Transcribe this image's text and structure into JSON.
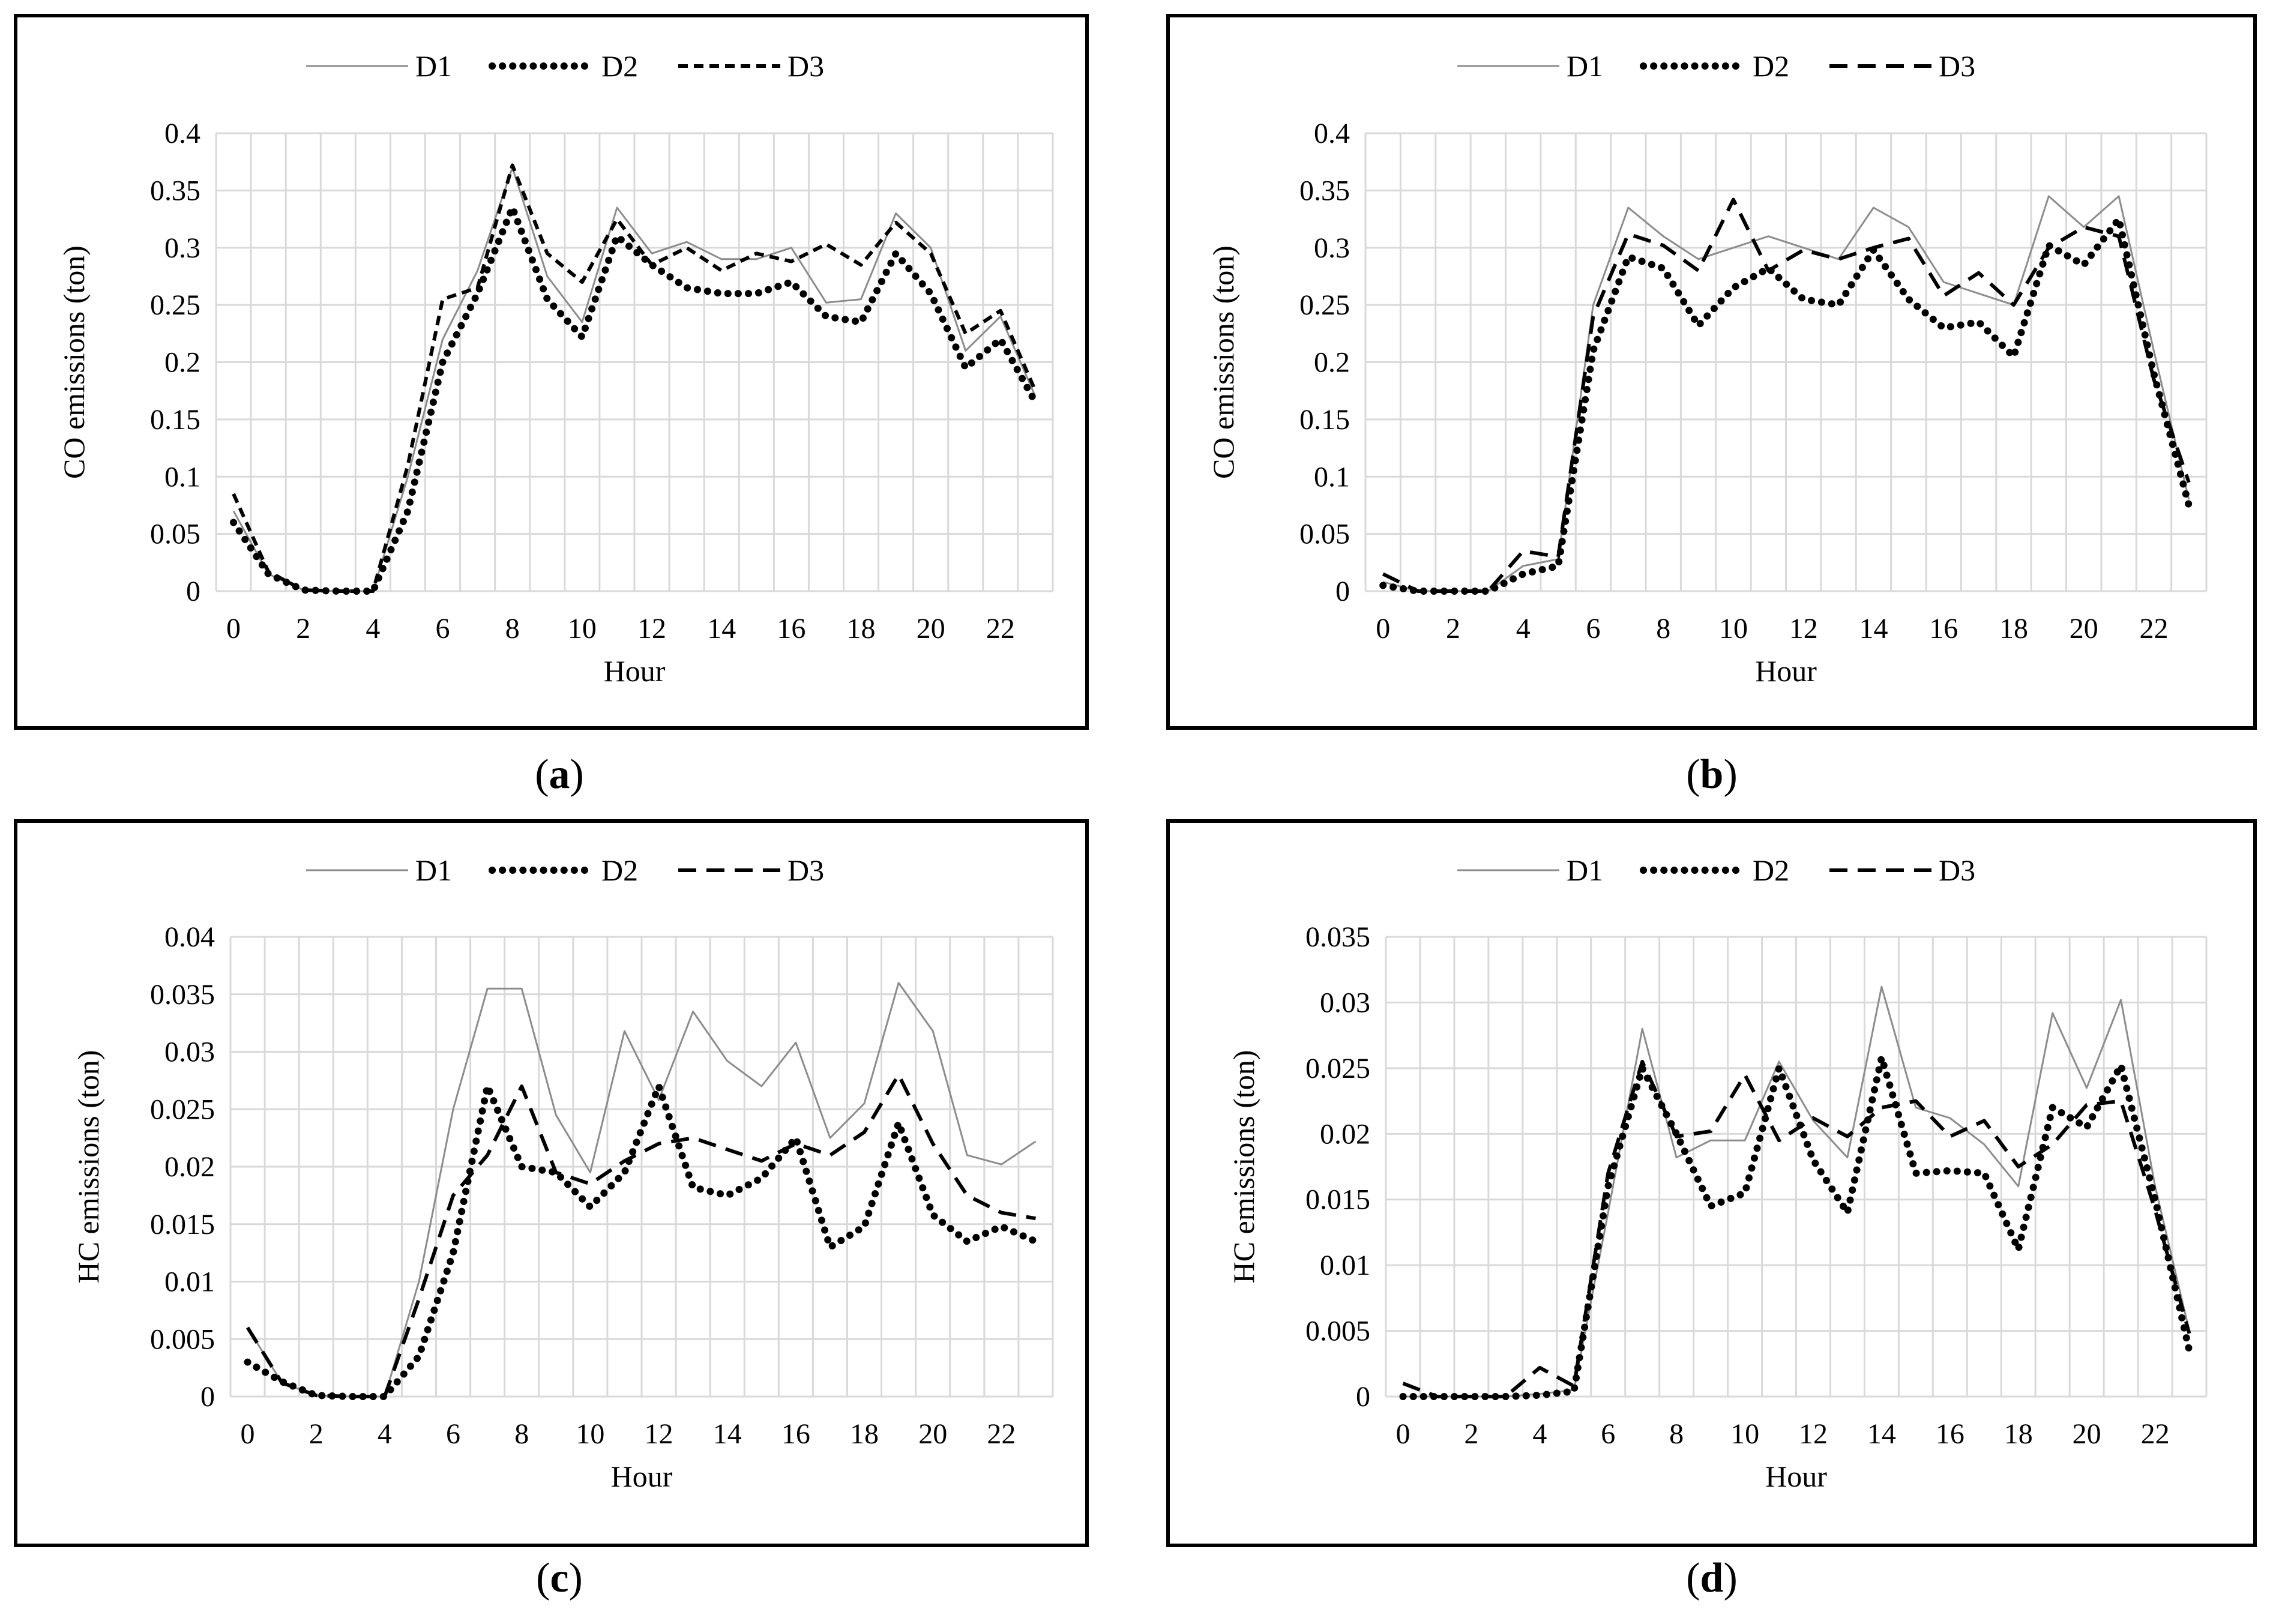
{
  "figure": {
    "panels": [
      {
        "caption_letter": "a",
        "chart_data": {
          "type": "line",
          "title": "",
          "xlabel": "Hour",
          "ylabel": "CO emissions (ton)",
          "x": [
            0,
            1,
            2,
            3,
            4,
            5,
            6,
            7,
            8,
            9,
            10,
            11,
            12,
            13,
            14,
            15,
            16,
            17,
            18,
            19,
            20,
            21,
            22,
            23
          ],
          "xlim": [
            -0.5,
            23.5
          ],
          "xticks": [
            0,
            2,
            4,
            6,
            8,
            10,
            12,
            14,
            16,
            18,
            20,
            22
          ],
          "ylim": [
            0,
            0.4
          ],
          "yticks": [
            "0",
            "0.05",
            "0.1",
            "0.15",
            "0.2",
            "0.25",
            "0.3",
            "0.35",
            "0.4"
          ],
          "legend_position": "top",
          "grid": true,
          "series": [
            {
              "name": "D1",
              "style": "thin",
              "values": [
                0.07,
                0.015,
                0.001,
                0,
                0,
                0.1,
                0.22,
                0.28,
                0.37,
                0.275,
                0.235,
                0.335,
                0.295,
                0.305,
                0.29,
                0.29,
                0.3,
                0.252,
                0.255,
                0.33,
                0.3,
                0.21,
                0.24,
                0.17
              ]
            },
            {
              "name": "D2",
              "style": "dotted",
              "values": [
                0.06,
                0.015,
                0.001,
                0,
                0,
                0.07,
                0.2,
                0.26,
                0.335,
                0.255,
                0.222,
                0.31,
                0.285,
                0.265,
                0.26,
                0.26,
                0.27,
                0.24,
                0.235,
                0.295,
                0.26,
                0.195,
                0.22,
                0.165
              ]
            },
            {
              "name": "D3",
              "style": "dashed-fine",
              "values": [
                0.085,
                0.017,
                0.001,
                0,
                0,
                0.11,
                0.255,
                0.265,
                0.372,
                0.295,
                0.27,
                0.325,
                0.285,
                0.3,
                0.28,
                0.295,
                0.288,
                0.303,
                0.285,
                0.322,
                0.295,
                0.225,
                0.245,
                0.175
              ]
            }
          ]
        }
      },
      {
        "caption_letter": "b",
        "chart_data": {
          "type": "line",
          "title": "",
          "xlabel": "Hour",
          "ylabel": "CO emissions (ton)",
          "x": [
            0,
            1,
            2,
            3,
            4,
            5,
            6,
            7,
            8,
            9,
            10,
            11,
            12,
            13,
            14,
            15,
            16,
            17,
            18,
            19,
            20,
            21,
            22,
            23
          ],
          "xlim": [
            -0.5,
            23.5
          ],
          "xticks": [
            0,
            2,
            4,
            6,
            8,
            10,
            12,
            14,
            16,
            18,
            20,
            22
          ],
          "ylim": [
            0,
            0.4
          ],
          "yticks": [
            "0",
            "0.05",
            "0.1",
            "0.15",
            "0.2",
            "0.25",
            "0.3",
            "0.35",
            "0.4"
          ],
          "legend_position": "top",
          "grid": true,
          "series": [
            {
              "name": "D1",
              "style": "thin",
              "values": [
                0.008,
                0,
                0,
                0,
                0.022,
                0.028,
                0.25,
                0.335,
                0.31,
                0.29,
                0.3,
                0.31,
                0.3,
                0.29,
                0.335,
                0.318,
                0.27,
                0.26,
                0.25,
                0.345,
                0.318,
                0.345,
                0.21,
                0.08
              ]
            },
            {
              "name": "D2",
              "style": "dotted",
              "values": [
                0.005,
                0,
                0,
                0,
                0.015,
                0.022,
                0.21,
                0.292,
                0.282,
                0.232,
                0.265,
                0.282,
                0.255,
                0.25,
                0.298,
                0.255,
                0.23,
                0.235,
                0.205,
                0.302,
                0.285,
                0.325,
                0.19,
                0.075
              ]
            },
            {
              "name": "D3",
              "style": "dashed",
              "values": [
                0.015,
                0,
                0,
                0,
                0.035,
                0.03,
                0.24,
                0.312,
                0.302,
                0.28,
                0.342,
                0.28,
                0.298,
                0.29,
                0.3,
                0.308,
                0.258,
                0.278,
                0.25,
                0.3,
                0.318,
                0.31,
                0.185,
                0.095
              ]
            }
          ]
        }
      },
      {
        "caption_letter": "c",
        "chart_data": {
          "type": "line",
          "title": "",
          "xlabel": "Hour",
          "ylabel": "HC emissions (ton)",
          "x": [
            0,
            1,
            2,
            3,
            4,
            5,
            6,
            7,
            8,
            9,
            10,
            11,
            12,
            13,
            14,
            15,
            16,
            17,
            18,
            19,
            20,
            21,
            22,
            23
          ],
          "xlim": [
            -0.5,
            23.5
          ],
          "xticks": [
            0,
            2,
            4,
            6,
            8,
            10,
            12,
            14,
            16,
            18,
            20,
            22
          ],
          "ylim": [
            0,
            0.04
          ],
          "yticks": [
            "0",
            "0.005",
            "0.01",
            "0.015",
            "0.02",
            "0.025",
            "0.03",
            "0.035",
            "0.04"
          ],
          "legend_position": "top",
          "grid": true,
          "series": [
            {
              "name": "D1",
              "style": "thin",
              "values": [
                0.006,
                0.0012,
                0.0001,
                0,
                0,
                0.01,
                0.025,
                0.0355,
                0.0355,
                0.0245,
                0.0195,
                0.0318,
                0.0258,
                0.0335,
                0.0292,
                0.027,
                0.0308,
                0.0225,
                0.0255,
                0.036,
                0.0318,
                0.021,
                0.0202,
                0.0222
              ]
            },
            {
              "name": "D2",
              "style": "dotted",
              "values": [
                0.003,
                0.0013,
                0.0001,
                0,
                0,
                0.0035,
                0.0125,
                0.027,
                0.02,
                0.0195,
                0.0165,
                0.0195,
                0.027,
                0.0182,
                0.0175,
                0.019,
                0.0225,
                0.013,
                0.0148,
                0.0238,
                0.0158,
                0.0135,
                0.0148,
                0.0135
              ]
            },
            {
              "name": "D3",
              "style": "dashed",
              "values": [
                0.006,
                0.0012,
                0.0001,
                0,
                0,
                0.0085,
                0.0175,
                0.021,
                0.027,
                0.0195,
                0.0185,
                0.0205,
                0.022,
                0.0225,
                0.0215,
                0.0205,
                0.022,
                0.021,
                0.023,
                0.028,
                0.022,
                0.0175,
                0.016,
                0.0155
              ]
            }
          ]
        }
      },
      {
        "caption_letter": "d",
        "chart_data": {
          "type": "line",
          "title": "",
          "xlabel": "Hour",
          "ylabel": "HC emissions (ton)",
          "x": [
            0,
            1,
            2,
            3,
            4,
            5,
            6,
            7,
            8,
            9,
            10,
            11,
            12,
            13,
            14,
            15,
            16,
            17,
            18,
            19,
            20,
            21,
            22,
            23
          ],
          "xlim": [
            -0.5,
            23.5
          ],
          "xticks": [
            0,
            2,
            4,
            6,
            8,
            10,
            12,
            14,
            16,
            18,
            20,
            22
          ],
          "ylim": [
            0,
            0.035
          ],
          "yticks": [
            "0",
            "0.005",
            "0.01",
            "0.015",
            "0.02",
            "0.025",
            "0.03",
            "0.035"
          ],
          "legend_position": "top",
          "grid": true,
          "series": [
            {
              "name": "D1",
              "style": "thin",
              "values": [
                0,
                0,
                0,
                0,
                0.0002,
                0.0005,
                0.014,
                0.028,
                0.0182,
                0.0195,
                0.0195,
                0.0255,
                0.021,
                0.0182,
                0.0312,
                0.022,
                0.0212,
                0.0192,
                0.016,
                0.0292,
                0.0235,
                0.0302,
                0.016,
                0.005
              ]
            },
            {
              "name": "D2",
              "style": "dotted",
              "values": [
                0,
                0,
                0,
                0,
                0.0001,
                0.0004,
                0.016,
                0.025,
                0.02,
                0.0145,
                0.0155,
                0.025,
                0.018,
                0.014,
                0.0258,
                0.017,
                0.0172,
                0.017,
                0.0112,
                0.022,
                0.0205,
                0.0252,
                0.015,
                0.0035
              ]
            },
            {
              "name": "D3",
              "style": "dashed",
              "values": [
                0.001,
                0,
                0,
                0,
                0.0022,
                0.0008,
                0.017,
                0.0255,
                0.0198,
                0.0202,
                0.0245,
                0.0195,
                0.0212,
                0.0198,
                0.022,
                0.0225,
                0.0198,
                0.021,
                0.0175,
                0.0192,
                0.0222,
                0.0225,
                0.0142,
                0.0048
              ]
            }
          ]
        }
      }
    ]
  }
}
